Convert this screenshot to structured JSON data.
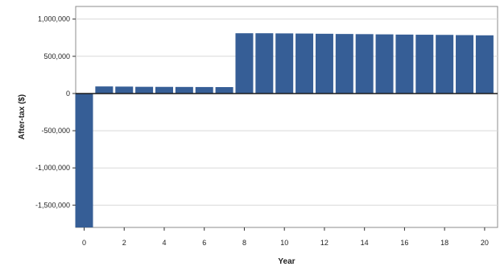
{
  "chart_data": {
    "type": "bar",
    "xlabel": "Year",
    "ylabel": "After-tax ($)",
    "ylim": [
      -1800000,
      1170000
    ],
    "yticks": [
      1000000,
      500000,
      0,
      -500000,
      -1000000,
      -1500000
    ],
    "ytick_labels": [
      "1,000,000",
      "500,000",
      "0",
      "-500,000",
      "-1,000,000",
      "-1,500,000"
    ],
    "xticks": [
      0,
      2,
      4,
      6,
      8,
      10,
      12,
      14,
      16,
      18,
      20
    ],
    "xtick_labels": [
      "0",
      "2",
      "4",
      "6",
      "8",
      "10",
      "12",
      "14",
      "16",
      "18",
      "20"
    ],
    "x": [
      0,
      1,
      2,
      3,
      4,
      5,
      6,
      7,
      8,
      9,
      10,
      11,
      12,
      13,
      14,
      15,
      16,
      17,
      18,
      19,
      20
    ],
    "values": [
      -1800000,
      95000,
      93000,
      90000,
      89000,
      88000,
      87000,
      86000,
      810000,
      810000,
      808000,
      806000,
      803000,
      800000,
      798000,
      795000,
      792000,
      790000,
      788000,
      785000,
      782000
    ],
    "grid": true,
    "bar_color": "#365e96"
  }
}
